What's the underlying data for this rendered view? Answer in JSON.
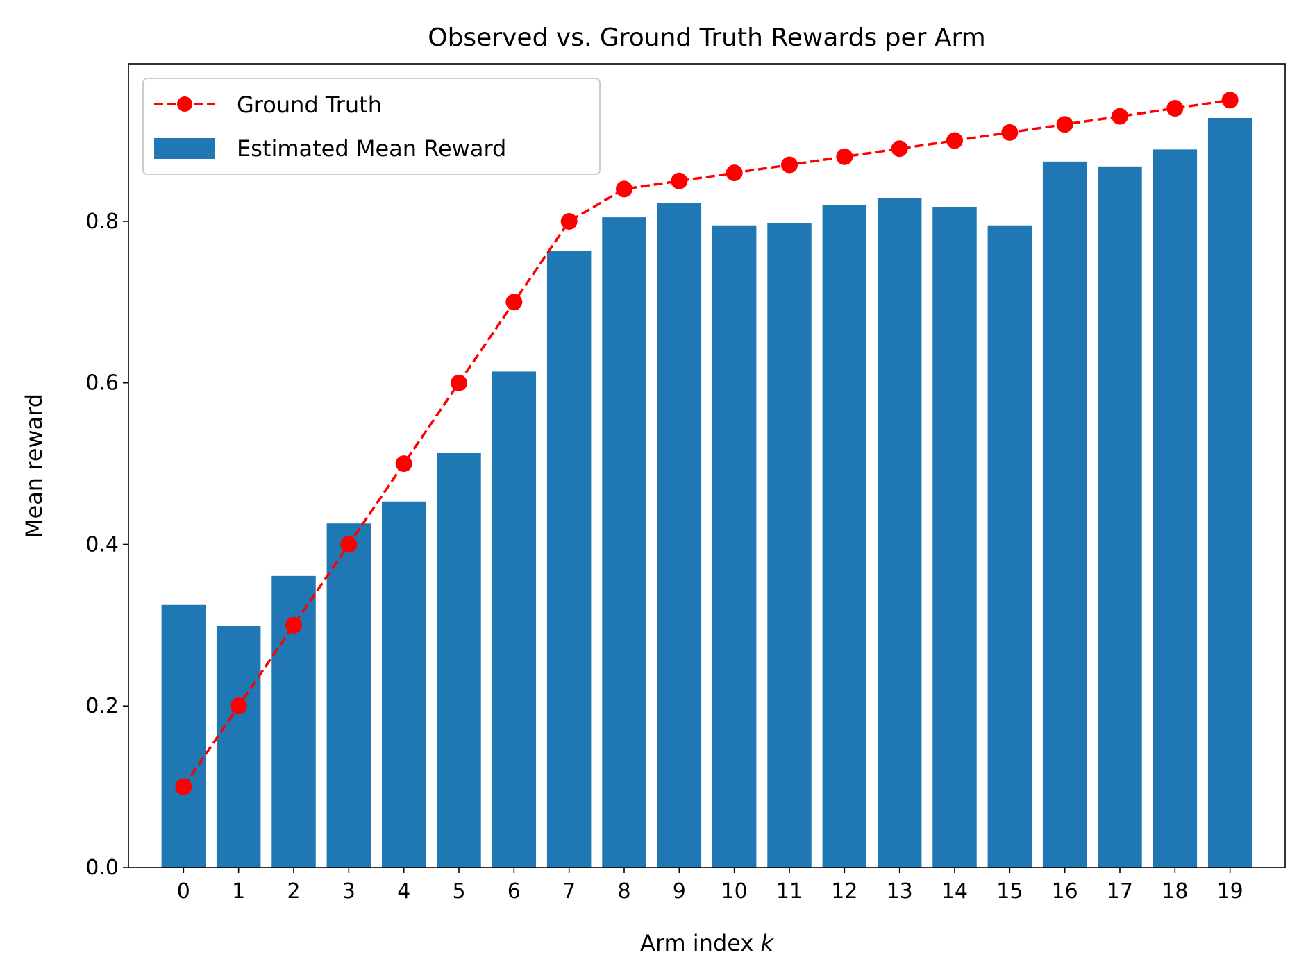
{
  "chart_data": {
    "type": "bar",
    "title": "Observed vs. Ground Truth Rewards per Arm",
    "xlabel": "Arm index ",
    "xlabel_var": "k",
    "ylabel": "Mean reward",
    "categories": [
      "0",
      "1",
      "2",
      "3",
      "4",
      "5",
      "6",
      "7",
      "8",
      "9",
      "10",
      "11",
      "12",
      "13",
      "14",
      "15",
      "16",
      "17",
      "18",
      "19"
    ],
    "xlim": [
      -1.0,
      20.0
    ],
    "ylim": [
      0,
      0.995
    ],
    "yticks": [
      0.0,
      0.2,
      0.4,
      0.6,
      0.8
    ],
    "ytick_labels": [
      "0.0",
      "0.2",
      "0.4",
      "0.6",
      "0.8"
    ],
    "legend_position": "upper left",
    "grid": false,
    "series": [
      {
        "name": "Ground Truth",
        "kind": "line",
        "style": "dashed with circle markers",
        "color": "#ff0000",
        "values": [
          0.1,
          0.2,
          0.3,
          0.4,
          0.5,
          0.6,
          0.7,
          0.8,
          0.84,
          0.85,
          0.86,
          0.87,
          0.88,
          0.89,
          0.9,
          0.91,
          0.92,
          0.93,
          0.94,
          0.95
        ]
      },
      {
        "name": "Estimated Mean Reward",
        "kind": "bar",
        "color": "#1f77b4",
        "values": [
          0.325,
          0.299,
          0.361,
          0.426,
          0.453,
          0.513,
          0.614,
          0.763,
          0.805,
          0.823,
          0.795,
          0.798,
          0.82,
          0.829,
          0.818,
          0.795,
          0.874,
          0.868,
          0.889,
          0.928
        ]
      }
    ]
  }
}
